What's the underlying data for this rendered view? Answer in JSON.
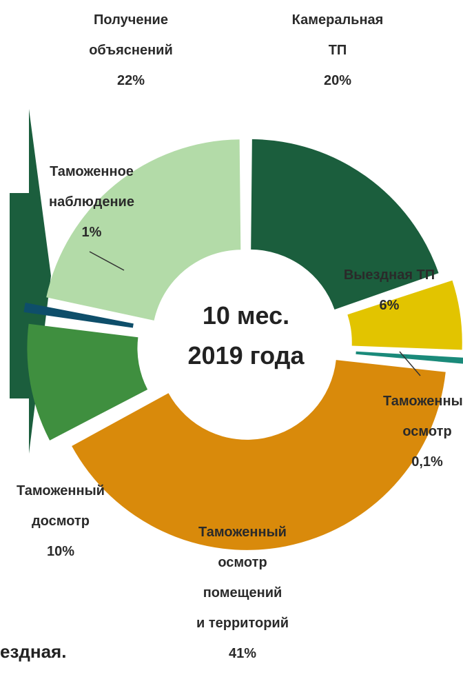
{
  "chart_data": {
    "type": "pie",
    "variant": "donut",
    "center_text": [
      "10 мес.",
      "2019 года"
    ],
    "slices": [
      {
        "label_lines": [
          "Камеральная",
          "ТП"
        ],
        "pct_text": "20%",
        "value": 20,
        "color": "#1b5e3d"
      },
      {
        "label_lines": [
          "Выездная ТП"
        ],
        "pct_text": "6%",
        "value": 6,
        "color": "#e2c400"
      },
      {
        "label_lines": [
          "Таможенный",
          "осмотр"
        ],
        "pct_text": "0,1%",
        "value": 0.1,
        "color": "#1a8a7a"
      },
      {
        "label_lines": [
          "Таможенный",
          "осмотр",
          "помещений",
          "и территорий"
        ],
        "pct_text": "41%",
        "value": 41,
        "color": "#d98a0b"
      },
      {
        "label_lines": [
          "Таможенный",
          "досмотр"
        ],
        "pct_text": "10%",
        "value": 10,
        "color": "#3f8f3f"
      },
      {
        "label_lines": [
          "Таможенное",
          "наблюдение"
        ],
        "pct_text": "1%",
        "value": 1,
        "color": "#0e4e6a"
      },
      {
        "label_lines": [
          "Получение",
          "объяснений"
        ],
        "pct_text": "22%",
        "value": 22,
        "color": "#b3dba8"
      }
    ],
    "legend": "none",
    "arrow_color": "#1b5e3d"
  },
  "fragment_text": "ездная."
}
